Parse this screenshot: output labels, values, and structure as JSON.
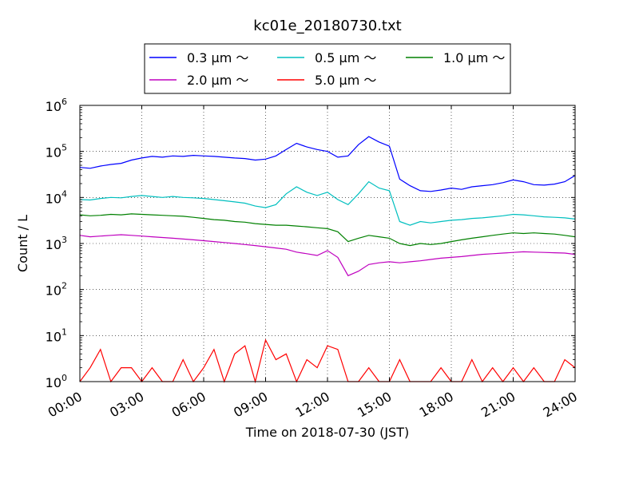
{
  "chart_data": {
    "type": "line",
    "title": "kc01e_20180730.txt",
    "xlabel": "Time on 2018-07-30 (JST)",
    "ylabel": "Count / L",
    "y_scale": "log",
    "ylim": [
      1,
      1000000
    ],
    "xlim": [
      "00:00",
      "24:00"
    ],
    "x_ticks": [
      "00:00",
      "03:00",
      "06:00",
      "09:00",
      "12:00",
      "15:00",
      "18:00",
      "21:00",
      "24:00"
    ],
    "y_ticks": [
      {
        "base": "10",
        "exp": "0",
        "value": 1
      },
      {
        "base": "10",
        "exp": "1",
        "value": 10
      },
      {
        "base": "10",
        "exp": "2",
        "value": 100
      },
      {
        "base": "10",
        "exp": "3",
        "value": 1000
      },
      {
        "base": "10",
        "exp": "4",
        "value": 10000
      },
      {
        "base": "10",
        "exp": "5",
        "value": 100000
      },
      {
        "base": "10",
        "exp": "6",
        "value": 1000000
      }
    ],
    "grid": true,
    "legend_position": "top",
    "series": [
      {
        "name": "0.3 μm ～",
        "color": "#0000ff",
        "x": [
          0,
          0.5,
          1,
          1.5,
          2,
          2.5,
          3,
          3.5,
          4,
          4.5,
          5,
          5.5,
          6,
          6.5,
          7,
          7.5,
          8,
          8.5,
          9,
          9.5,
          10,
          10.5,
          11,
          11.5,
          12,
          12.5,
          13,
          13.5,
          14,
          14.5,
          15,
          15.5,
          16,
          16.5,
          17,
          17.5,
          18,
          18.5,
          19,
          19.5,
          20,
          20.5,
          21,
          21.5,
          22,
          22.5,
          23,
          23.5,
          24
        ],
        "y": [
          45000,
          43000,
          48000,
          52000,
          55000,
          65000,
          72000,
          78000,
          75000,
          80000,
          78000,
          82000,
          80000,
          78000,
          75000,
          72000,
          70000,
          65000,
          68000,
          80000,
          110000,
          150000,
          125000,
          110000,
          100000,
          75000,
          80000,
          140000,
          210000,
          160000,
          130000,
          25000,
          18000,
          14000,
          13500,
          14500,
          16000,
          15000,
          17000,
          18000,
          19000,
          21000,
          24000,
          22000,
          19000,
          18500,
          19500,
          22000,
          30000
        ]
      },
      {
        "name": "0.5 μm ～",
        "color": "#00bfbf",
        "x": [
          0,
          0.5,
          1,
          1.5,
          2,
          2.5,
          3,
          3.5,
          4,
          4.5,
          5,
          5.5,
          6,
          6.5,
          7,
          7.5,
          8,
          8.5,
          9,
          9.5,
          10,
          10.5,
          11,
          11.5,
          12,
          12.5,
          13,
          13.5,
          14,
          14.5,
          15,
          15.5,
          16,
          16.5,
          17,
          17.5,
          18,
          18.5,
          19,
          19.5,
          20,
          20.5,
          21,
          21.5,
          22,
          22.5,
          23,
          23.5,
          24
        ],
        "y": [
          9000,
          8800,
          9500,
          10000,
          9800,
          10500,
          11000,
          10500,
          10000,
          10500,
          10000,
          9800,
          9500,
          9000,
          8500,
          8000,
          7500,
          6500,
          6000,
          7000,
          12000,
          17000,
          13000,
          11000,
          13000,
          9000,
          7000,
          12000,
          22000,
          16000,
          14000,
          3000,
          2500,
          3000,
          2800,
          3000,
          3200,
          3300,
          3500,
          3600,
          3800,
          4000,
          4300,
          4200,
          4000,
          3800,
          3700,
          3600,
          3400
        ]
      },
      {
        "name": "1.0 μm ～",
        "color": "#008000",
        "x": [
          0,
          0.5,
          1,
          1.5,
          2,
          2.5,
          3,
          3.5,
          4,
          4.5,
          5,
          5.5,
          6,
          6.5,
          7,
          7.5,
          8,
          8.5,
          9,
          9.5,
          10,
          10.5,
          11,
          11.5,
          12,
          12.5,
          13,
          13.5,
          14,
          14.5,
          15,
          15.5,
          16,
          16.5,
          17,
          17.5,
          18,
          18.5,
          19,
          19.5,
          20,
          20.5,
          21,
          21.5,
          22,
          22.5,
          23,
          23.5,
          24
        ],
        "y": [
          4200,
          4000,
          4100,
          4300,
          4200,
          4400,
          4300,
          4200,
          4100,
          4000,
          3900,
          3700,
          3500,
          3300,
          3200,
          3000,
          2900,
          2700,
          2600,
          2500,
          2500,
          2400,
          2300,
          2200,
          2100,
          1800,
          1100,
          1300,
          1500,
          1400,
          1300,
          1000,
          900,
          1000,
          950,
          1000,
          1100,
          1200,
          1300,
          1400,
          1500,
          1600,
          1700,
          1650,
          1700,
          1650,
          1600,
          1500,
          1400
        ]
      },
      {
        "name": "2.0 μm ～",
        "color": "#bf00bf",
        "x": [
          0,
          0.5,
          1,
          1.5,
          2,
          2.5,
          3,
          3.5,
          4,
          4.5,
          5,
          5.5,
          6,
          6.5,
          7,
          7.5,
          8,
          8.5,
          9,
          9.5,
          10,
          10.5,
          11,
          11.5,
          12,
          12.5,
          13,
          13.5,
          14,
          14.5,
          15,
          15.5,
          16,
          16.5,
          17,
          17.5,
          18,
          18.5,
          19,
          19.5,
          20,
          20.5,
          21,
          21.5,
          22,
          22.5,
          23,
          23.5,
          24
        ],
        "y": [
          1500,
          1400,
          1450,
          1500,
          1550,
          1500,
          1450,
          1400,
          1350,
          1300,
          1250,
          1200,
          1150,
          1100,
          1050,
          1000,
          950,
          900,
          850,
          800,
          750,
          650,
          600,
          550,
          700,
          500,
          200,
          250,
          350,
          380,
          400,
          380,
          400,
          420,
          450,
          480,
          500,
          520,
          550,
          580,
          600,
          620,
          640,
          660,
          650,
          640,
          630,
          620,
          580
        ]
      },
      {
        "name": "5.0 μm ～",
        "color": "#ff0000",
        "x": [
          0,
          0.5,
          1,
          1.5,
          2,
          2.5,
          3,
          3.5,
          4,
          4.5,
          5,
          5.5,
          6,
          6.5,
          7,
          7.5,
          8,
          8.5,
          9,
          9.5,
          10,
          10.5,
          11,
          11.5,
          12,
          12.5,
          13,
          13.5,
          14,
          14.5,
          15,
          15.5,
          16,
          16.5,
          17,
          17.5,
          18,
          18.5,
          19,
          19.5,
          20,
          20.5,
          21,
          21.5,
          22,
          22.5,
          23,
          23.5,
          24
        ],
        "y": [
          1,
          2,
          5,
          1,
          2,
          2,
          1,
          2,
          1,
          1,
          3,
          1,
          2,
          5,
          1,
          4,
          6,
          1,
          8,
          3,
          4,
          1,
          3,
          2,
          6,
          5,
          1,
          1,
          2,
          1,
          1,
          3,
          1,
          1,
          1,
          2,
          1,
          1,
          3,
          1,
          2,
          1,
          2,
          1,
          2,
          1,
          1,
          3,
          2
        ]
      }
    ]
  }
}
